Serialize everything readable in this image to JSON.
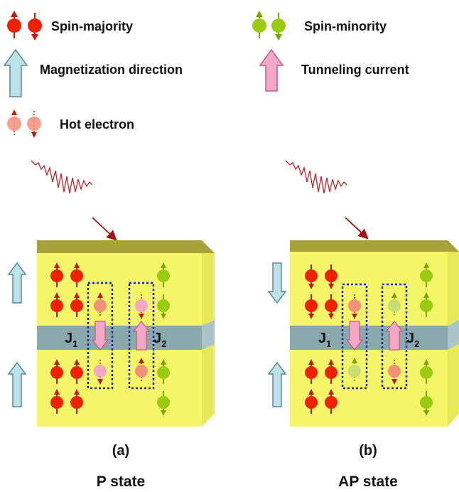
{
  "legend": {
    "spin_majority": "Spin-majority",
    "spin_minority": "Spin-minority",
    "magnetization_direction": "Magnetization direction",
    "tunneling_current": "Tunneling current",
    "hot_electron": "Hot electron"
  },
  "panels": [
    {
      "letter": "(a)",
      "state": "P state",
      "j1": "J",
      "j1_sub": "1",
      "j2": "J",
      "j2_sub": "2",
      "top_magnetization": "up",
      "bottom_magnetization": "up"
    },
    {
      "letter": "(b)",
      "state": "AP state",
      "j1": "J",
      "j1_sub": "1",
      "j2": "J",
      "j2_sub": "2",
      "top_magnetization": "down",
      "bottom_magnetization": "up"
    }
  ],
  "colors": {
    "majority": "#ee2200",
    "minority": "#99cc11",
    "hot_electron": "#f4907a",
    "magnetization_arrow": "#bde3ea",
    "tunneling_arrow": "#f4a8c6",
    "ferromagnet": "#f5f56a",
    "barrier": "#8aa9ad",
    "laser_pulse": "#c8202a"
  }
}
